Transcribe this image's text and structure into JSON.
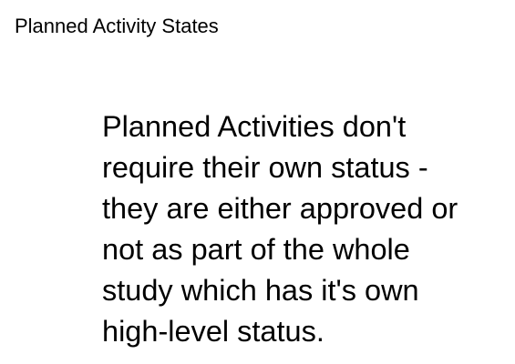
{
  "slide": {
    "title": "Planned Activity States",
    "body_lines": [
      "Planned Activities don't",
      "require their own status -",
      "they are either approved or",
      "not as part of the whole",
      "study which has it's own",
      "high-level status."
    ]
  }
}
